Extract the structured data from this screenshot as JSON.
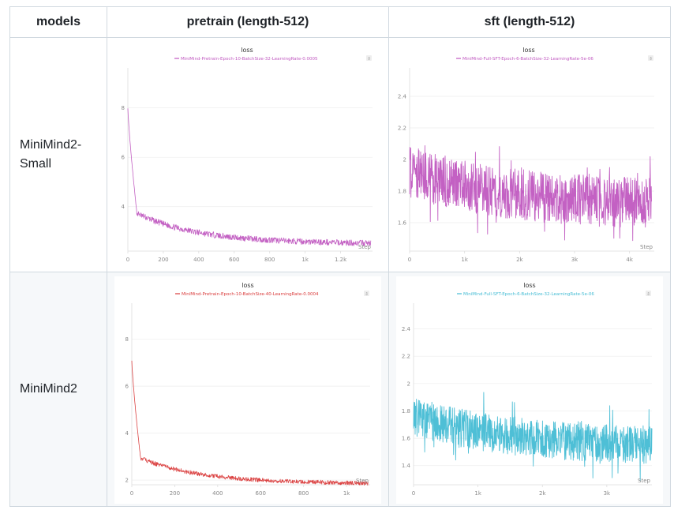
{
  "table": {
    "headers": [
      "models",
      "pretrain (length-512)",
      "sft (length-512)"
    ],
    "rows": [
      {
        "model": "MiniMind2-Small"
      },
      {
        "model": "MiniMind2"
      }
    ]
  },
  "chart_data": [
    {
      "id": "small-pretrain",
      "type": "line",
      "title": "loss",
      "legend": "MiniMind-Pretrain-Epoch-10-BatchSize-32-LearningRate-0.0005",
      "legend_position": "top",
      "color": "#c058c0",
      "xlabel": "Step",
      "ylabel": "",
      "xlim": [
        0,
        1380
      ],
      "ylim": [
        2.2,
        9.3
      ],
      "xticks": [
        0,
        200,
        400,
        600,
        800,
        1000,
        1200
      ],
      "xtick_labels": [
        "0",
        "200",
        "400",
        "600",
        "800",
        "1k",
        "1.2k"
      ],
      "yticks": [
        4,
        6,
        8
      ],
      "yticks_labels": [
        "4",
        "6",
        "8"
      ],
      "grid": true,
      "series_shape": {
        "start": 8.0,
        "knee_x": 50,
        "knee_y": 3.8,
        "end": 2.5,
        "noise": 0.12
      },
      "x_range_data": [
        0,
        1370
      ]
    },
    {
      "id": "small-sft",
      "type": "line",
      "title": "loss",
      "legend": "MiniMind-Full-SFT-Epoch-6-BatchSize-32-LearningRate-5e-06",
      "legend_position": "top",
      "color": "#c058c0",
      "xlabel": "Step",
      "ylabel": "",
      "xlim": [
        0,
        4450
      ],
      "ylim": [
        1.42,
        2.53
      ],
      "xticks": [
        0,
        1000,
        2000,
        3000,
        4000
      ],
      "xtick_labels": [
        "0",
        "1k",
        "2k",
        "3k",
        "4k"
      ],
      "yticks": [
        1.6,
        1.8,
        2.0,
        2.2,
        2.4
      ],
      "yticks_labels": [
        "1.6",
        "1.8",
        "2",
        "2.2",
        "2.4"
      ],
      "grid": true,
      "series_shape": {
        "start": 1.92,
        "end": 1.72,
        "noise": 0.16
      },
      "x_range_data": [
        0,
        4400
      ]
    },
    {
      "id": "base-pretrain",
      "type": "line",
      "title": "loss",
      "legend": "MiniMind-Pretrain-Epoch-10-BatchSize-40-LearningRate-0.0004",
      "legend_position": "top",
      "color": "#d93a3a",
      "xlabel": "Step",
      "ylabel": "",
      "xlim": [
        0,
        1110
      ],
      "ylim": [
        1.8,
        9.2
      ],
      "xticks": [
        0,
        200,
        400,
        600,
        800,
        1000
      ],
      "xtick_labels": [
        "0",
        "200",
        "400",
        "600",
        "800",
        "1k"
      ],
      "yticks": [
        2,
        4,
        6,
        8
      ],
      "yticks_labels": [
        "2",
        "4",
        "6",
        "8"
      ],
      "grid": true,
      "series_shape": {
        "start": 7.1,
        "knee_x": 40,
        "knee_y": 3.0,
        "end": 1.85,
        "noise": 0.09
      },
      "x_range_data": [
        0,
        1100
      ]
    },
    {
      "id": "base-sft",
      "type": "line",
      "title": "loss",
      "legend": "MiniMind-Full-SFT-Epoch-6-BatchSize-32-LearningRate-5e-06",
      "legend_position": "top",
      "color": "#45bcd4",
      "xlabel": "Step",
      "ylabel": "",
      "xlim": [
        0,
        3700
      ],
      "ylim": [
        1.26,
        2.53
      ],
      "xticks": [
        0,
        1000,
        2000,
        3000
      ],
      "xtick_labels": [
        "0",
        "1k",
        "2k",
        "3k"
      ],
      "yticks": [
        1.4,
        1.6,
        1.8,
        2.0,
        2.2,
        2.4
      ],
      "yticks_labels": [
        "1.4",
        "1.6",
        "1.8",
        "2",
        "2.2",
        "2.4"
      ],
      "grid": true,
      "series_shape": {
        "start": 1.76,
        "end": 1.55,
        "noise": 0.14
      },
      "x_range_data": [
        0,
        3700
      ]
    }
  ]
}
